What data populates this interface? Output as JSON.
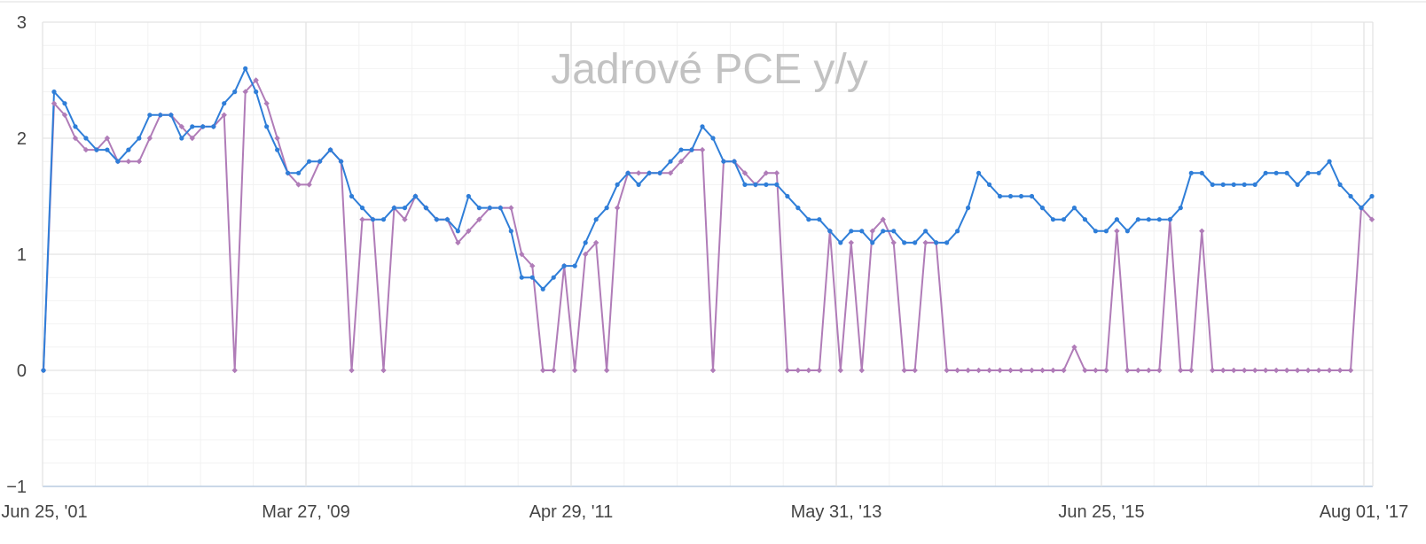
{
  "chart_data": {
    "type": "line",
    "title": "Jadrové PCE y/y",
    "xlabel": "",
    "ylabel": "",
    "ylim": [
      -1,
      3
    ],
    "y_ticks": [
      "3",
      "2",
      "1",
      "0",
      "−1"
    ],
    "x_ticks": [
      "Jun 25, '01",
      "Mar 27, '09",
      "Apr 29, '11",
      "May 31, '13",
      "Jun 25, '15",
      "Aug 01, '17"
    ],
    "grid": true,
    "legend": "none",
    "series": [
      {
        "color": "#2f7ed8",
        "marker": "circle",
        "values": [
          0,
          2.4,
          2.3,
          2.1,
          2.0,
          1.9,
          1.9,
          1.8,
          1.9,
          2.0,
          2.2,
          2.2,
          2.2,
          2.0,
          2.1,
          2.1,
          2.1,
          2.3,
          2.4,
          2.6,
          2.4,
          2.1,
          1.9,
          1.7,
          1.7,
          1.8,
          1.8,
          1.9,
          1.8,
          1.5,
          1.4,
          1.3,
          1.3,
          1.4,
          1.4,
          1.5,
          1.4,
          1.3,
          1.3,
          1.2,
          1.5,
          1.4,
          1.4,
          1.4,
          1.2,
          0.8,
          0.8,
          0.7,
          0.8,
          0.9,
          0.9,
          1.1,
          1.3,
          1.4,
          1.6,
          1.7,
          1.6,
          1.7,
          1.7,
          1.8,
          1.9,
          1.9,
          2.1,
          2.0,
          1.8,
          1.8,
          1.6,
          1.6,
          1.6,
          1.6,
          1.5,
          1.4,
          1.3,
          1.3,
          1.2,
          1.1,
          1.2,
          1.2,
          1.1,
          1.2,
          1.2,
          1.1,
          1.1,
          1.2,
          1.1,
          1.1,
          1.2,
          1.4,
          1.7,
          1.6,
          1.5,
          1.5,
          1.5,
          1.5,
          1.4,
          1.3,
          1.3,
          1.4,
          1.3,
          1.2,
          1.2,
          1.3,
          1.2,
          1.3,
          1.3,
          1.3,
          1.3,
          1.4,
          1.7,
          1.7,
          1.6,
          1.6,
          1.6,
          1.6,
          1.6,
          1.7,
          1.7,
          1.7,
          1.6,
          1.7,
          1.7,
          1.8,
          1.6,
          1.5,
          1.4,
          1.5
        ]
      },
      {
        "color": "#b07cb8",
        "marker": "diamond",
        "values": [
          0,
          2.3,
          2.2,
          2.0,
          1.9,
          1.9,
          2.0,
          1.8,
          1.8,
          1.8,
          2.0,
          2.2,
          2.2,
          2.1,
          2.0,
          2.1,
          2.1,
          2.2,
          0,
          2.4,
          2.5,
          2.3,
          2.0,
          1.7,
          1.6,
          1.6,
          1.8,
          1.9,
          1.8,
          0,
          1.3,
          1.3,
          0,
          1.4,
          1.3,
          1.5,
          1.4,
          1.3,
          1.3,
          1.1,
          1.2,
          1.3,
          1.4,
          1.4,
          1.4,
          1.0,
          0.9,
          0,
          0,
          0.9,
          0,
          1.0,
          1.1,
          0,
          1.4,
          1.7,
          1.7,
          1.7,
          1.7,
          1.7,
          1.8,
          1.9,
          1.9,
          0,
          1.8,
          1.8,
          1.7,
          1.6,
          1.7,
          1.7,
          0,
          0,
          0,
          0,
          1.2,
          0,
          1.1,
          0,
          1.2,
          1.3,
          1.1,
          0,
          0,
          1.1,
          1.1,
          0,
          0,
          0,
          0,
          0,
          0,
          0,
          0,
          0,
          0,
          0,
          0,
          0.2,
          0,
          0,
          0,
          1.2,
          0,
          0,
          0,
          0,
          1.3,
          0,
          0,
          1.2,
          0,
          0,
          0,
          0,
          0,
          0,
          0,
          0,
          0,
          0,
          0,
          0,
          0,
          0,
          1.4,
          1.3
        ]
      }
    ]
  }
}
